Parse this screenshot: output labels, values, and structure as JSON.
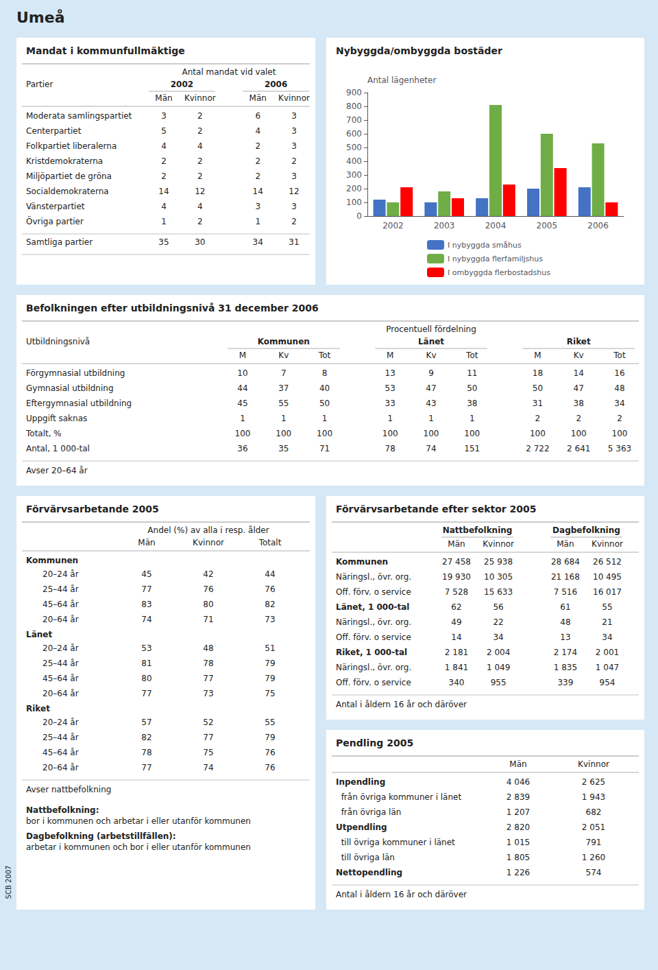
{
  "chart_data": [
    {
      "type": "page",
      "title": "Umeå",
      "annotations": [
        "SCB 2007"
      ],
      "color": "#d6e8f5"
    },
    {
      "type": "table",
      "title": "Mandat i kommunfullmäktige",
      "header": "Antal mandat vid valet",
      "row_header": "Partier",
      "column_groups": [
        {
          "name": "2002",
          "columns": [
            "Män",
            "Kvinnor"
          ]
        },
        {
          "name": "2006",
          "columns": [
            "Män",
            "Kvinnor"
          ]
        }
      ],
      "rows": [
        [
          "Moderata samlingspartiet",
          3,
          2,
          6,
          3
        ],
        [
          "Centerpartiet",
          5,
          2,
          4,
          3
        ],
        [
          "Folkpartiet liberalerna",
          4,
          4,
          2,
          3
        ],
        [
          "Kristdemokraterna",
          2,
          2,
          2,
          2
        ],
        [
          "Miljöpartiet de gröna",
          2,
          2,
          2,
          3
        ],
        [
          "Socialdemokraterna",
          14,
          12,
          14,
          12
        ],
        [
          "Vänsterpartiet",
          4,
          4,
          3,
          3
        ],
        [
          "Övriga partier",
          1,
          2,
          1,
          2
        ]
      ],
      "total_row": [
        "Samtliga partier",
        35,
        30,
        34,
        31
      ]
    },
    {
      "type": "bar",
      "title": "Nybyggda/ombyggda bostäder",
      "y_label": "Antal lägenheter",
      "categories": [
        "2002",
        "2003",
        "2004",
        "2005",
        "2006"
      ],
      "series": [
        {
          "name": "I nybyggda småhus",
          "color": "#4472c4",
          "values": [
            120,
            100,
            130,
            200,
            210
          ]
        },
        {
          "name": "I nybyggda flerfamiljshus",
          "color": "#70ad47",
          "values": [
            100,
            180,
            810,
            600,
            530
          ]
        },
        {
          "name": "I ombyggda flerbostadshus",
          "color": "#ff0000",
          "values": [
            210,
            130,
            230,
            350,
            100
          ]
        }
      ],
      "ylim": [
        0,
        900
      ],
      "yticks": [
        0,
        100,
        200,
        300,
        400,
        500,
        600,
        700,
        800,
        900
      ],
      "grid": false,
      "legend": "bottom"
    },
    {
      "type": "table",
      "title": "Befolkningen efter utbildningsnivå 31 december 2006",
      "header": "Procentuell fördelning",
      "row_header": "Utbildningsnivå",
      "column_groups": [
        {
          "name": "Kommunen",
          "columns": [
            "M",
            "Kv",
            "Tot"
          ]
        },
        {
          "name": "Länet",
          "columns": [
            "M",
            "Kv",
            "Tot"
          ]
        },
        {
          "name": "Riket",
          "columns": [
            "M",
            "Kv",
            "Tot"
          ]
        }
      ],
      "rows": [
        [
          "Förgymnasial utbildning",
          10,
          7,
          8,
          13,
          9,
          11,
          18,
          14,
          16
        ],
        [
          "Gymnasial utbildning",
          44,
          37,
          40,
          53,
          47,
          50,
          50,
          47,
          48
        ],
        [
          "Eftergymnasial utbildning",
          45,
          55,
          50,
          33,
          43,
          38,
          31,
          38,
          34
        ],
        [
          "Uppgift saknas",
          1,
          1,
          1,
          1,
          1,
          1,
          2,
          2,
          2
        ],
        [
          "Totalt, %",
          100,
          100,
          100,
          100,
          100,
          100,
          100,
          100,
          100
        ],
        [
          "Antal, 1 000-tal",
          36,
          35,
          71,
          78,
          74,
          151,
          "2 722",
          "2 641",
          "5 363"
        ]
      ],
      "note": "Avser 20–64 år"
    },
    {
      "type": "table",
      "title": "Förvärvsarbetande 2005",
      "header": "Andel (%) av alla i resp. ålder",
      "columns": [
        "Män",
        "Kvinnor",
        "Totalt"
      ],
      "sections": [
        {
          "label": "Kommunen",
          "rows": [
            [
              "20–24 år",
              45,
              42,
              44
            ],
            [
              "25–44 år",
              77,
              76,
              76
            ],
            [
              "45–64 år",
              83,
              80,
              82
            ],
            [
              "20–64 år",
              74,
              71,
              73
            ]
          ]
        },
        {
          "label": "Länet",
          "rows": [
            [
              "20–24 år",
              53,
              48,
              51
            ],
            [
              "25–44 år",
              81,
              78,
              79
            ],
            [
              "45–64 år",
              80,
              77,
              79
            ],
            [
              "20–64 år",
              77,
              73,
              75
            ]
          ]
        },
        {
          "label": "Riket",
          "rows": [
            [
              "20–24 år",
              57,
              52,
              55
            ],
            [
              "25–44 år",
              82,
              77,
              79
            ],
            [
              "45–64 år",
              78,
              75,
              76
            ],
            [
              "20–64 år",
              77,
              74,
              76
            ]
          ]
        }
      ],
      "note": "Avser nattbefolkning",
      "definitions": [
        {
          "term": "Nattbefolkning:",
          "text": "bor i kommunen och arbetar i eller utanför kommunen"
        },
        {
          "term": "Dagbefolkning (arbetstillfällen):",
          "text": "arbetar i kommunen och bor i eller utanför kommunen"
        }
      ]
    },
    {
      "type": "table",
      "title": "Förvärvsarbetande efter sektor 2005",
      "column_groups": [
        {
          "name": "Nattbefolkning",
          "columns": [
            "Män",
            "Kvinnor"
          ]
        },
        {
          "name": "Dagbefolkning",
          "columns": [
            "Män",
            "Kvinnor"
          ]
        }
      ],
      "rows": [
        {
          "label": "Kommunen",
          "bold": true,
          "values": [
            "27 458",
            "25 938",
            "28 684",
            "26 512"
          ]
        },
        {
          "label": "Näringsl., övr. org.",
          "bold": false,
          "values": [
            "19 930",
            "10 305",
            "21 168",
            "10 495"
          ]
        },
        {
          "label": "Off. förv. o service",
          "bold": false,
          "values": [
            "7 528",
            "15 633",
            "7 516",
            "16 017"
          ]
        },
        {
          "label": "Länet, 1 000-tal",
          "bold": true,
          "values": [
            62,
            56,
            61,
            55
          ]
        },
        {
          "label": "Näringsl., övr. org.",
          "bold": false,
          "values": [
            49,
            22,
            48,
            21
          ]
        },
        {
          "label": "Off. förv. o service",
          "bold": false,
          "values": [
            14,
            34,
            13,
            34
          ]
        },
        {
          "label": "Riket, 1 000-tal",
          "bold": true,
          "values": [
            "2 181",
            "2 004",
            "2 174",
            "2 001"
          ]
        },
        {
          "label": "Näringsl., övr. org.",
          "bold": false,
          "values": [
            "1 841",
            "1 049",
            "1 835",
            "1 047"
          ]
        },
        {
          "label": "Off. förv. o service",
          "bold": false,
          "values": [
            340,
            955,
            339,
            954
          ]
        }
      ],
      "note": "Antal i åldern 16 år och däröver"
    },
    {
      "type": "table",
      "title": "Pendling 2005",
      "columns": [
        "Män",
        "Kvinnor"
      ],
      "rows": [
        {
          "label": "Inpendling",
          "bold": true,
          "values": [
            "4 046",
            "2 625"
          ]
        },
        {
          "label": "  från övriga kommuner i länet",
          "bold": false,
          "values": [
            "2 839",
            "1 943"
          ]
        },
        {
          "label": "  från övriga län",
          "bold": false,
          "values": [
            "1 207",
            "682"
          ]
        },
        {
          "label": "Utpendling",
          "bold": true,
          "values": [
            "2 820",
            "2 051"
          ]
        },
        {
          "label": "  till övriga kommuner i länet",
          "bold": false,
          "values": [
            "1 015",
            "791"
          ]
        },
        {
          "label": "  till övriga län",
          "bold": false,
          "values": [
            "1 805",
            "1 260"
          ]
        },
        {
          "label": "Nettopendling",
          "bold": true,
          "values": [
            "1 226",
            "574"
          ]
        }
      ],
      "note": "Antal i åldern 16 år och däröver"
    }
  ]
}
